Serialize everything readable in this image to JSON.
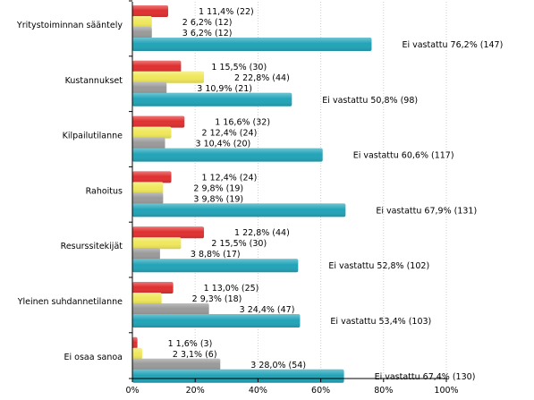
{
  "chart_data": {
    "type": "bar",
    "orientation": "horizontal",
    "xlim": [
      0,
      100
    ],
    "x_ticks": [
      "0%",
      "20%",
      "40%",
      "60%",
      "80%",
      "100%"
    ],
    "colors": {
      "1": "#e03030",
      "2": "#f0e85a",
      "3": "#9a9a9a",
      "Ei vastattu": "#22a4b8"
    },
    "groups": [
      {
        "category": "Yritystoiminnan sääntely",
        "bars": [
          {
            "key": "1",
            "value": 11.4,
            "label": "1 11,4% (22)"
          },
          {
            "key": "2",
            "value": 6.2,
            "label": "2 6,2% (12)"
          },
          {
            "key": "3",
            "value": 6.2,
            "label": "3 6,2% (12)"
          },
          {
            "key": "Ei vastattu",
            "value": 76.2,
            "label": "Ei vastattu 76,2% (147)"
          }
        ]
      },
      {
        "category": "Kustannukset",
        "bars": [
          {
            "key": "1",
            "value": 15.5,
            "label": "1 15,5% (30)"
          },
          {
            "key": "2",
            "value": 22.8,
            "label": "2 22,8% (44)"
          },
          {
            "key": "3",
            "value": 10.9,
            "label": "3 10,9% (21)"
          },
          {
            "key": "Ei vastattu",
            "value": 50.8,
            "label": "Ei vastattu 50,8% (98)"
          }
        ]
      },
      {
        "category": "Kilpailutilanne",
        "bars": [
          {
            "key": "1",
            "value": 16.6,
            "label": "1 16,6% (32)"
          },
          {
            "key": "2",
            "value": 12.4,
            "label": "2 12,4% (24)"
          },
          {
            "key": "3",
            "value": 10.4,
            "label": "3 10,4% (20)"
          },
          {
            "key": "Ei vastattu",
            "value": 60.6,
            "label": "Ei vastattu 60,6% (117)"
          }
        ]
      },
      {
        "category": "Rahoitus",
        "bars": [
          {
            "key": "1",
            "value": 12.4,
            "label": "1 12,4% (24)"
          },
          {
            "key": "2",
            "value": 9.8,
            "label": "2 9,8% (19)"
          },
          {
            "key": "3",
            "value": 9.8,
            "label": "3 9,8% (19)"
          },
          {
            "key": "Ei vastattu",
            "value": 67.9,
            "label": "Ei vastattu 67,9% (131)"
          }
        ]
      },
      {
        "category": "Resurssitekijät",
        "bars": [
          {
            "key": "1",
            "value": 22.8,
            "label": "1 22,8% (44)"
          },
          {
            "key": "2",
            "value": 15.5,
            "label": "2 15,5% (30)"
          },
          {
            "key": "3",
            "value": 8.8,
            "label": "3 8,8% (17)"
          },
          {
            "key": "Ei vastattu",
            "value": 52.8,
            "label": "Ei vastattu 52,8% (102)"
          }
        ]
      },
      {
        "category": "Yleinen suhdannetilanne",
        "bars": [
          {
            "key": "1",
            "value": 13.0,
            "label": "1 13,0% (25)"
          },
          {
            "key": "2",
            "value": 9.3,
            "label": "2 9,3% (18)"
          },
          {
            "key": "3",
            "value": 24.4,
            "label": "3 24,4% (47)"
          },
          {
            "key": "Ei vastattu",
            "value": 53.4,
            "label": "Ei vastattu 53,4% (103)"
          }
        ]
      },
      {
        "category": "Ei osaa sanoa",
        "bars": [
          {
            "key": "1",
            "value": 1.6,
            "label": "1 1,6% (3)"
          },
          {
            "key": "2",
            "value": 3.1,
            "label": "2 3,1% (6)"
          },
          {
            "key": "3",
            "value": 28.0,
            "label": "3 28,0% (54)"
          },
          {
            "key": "Ei vastattu",
            "value": 67.4,
            "label": "Ei vastattu 67,4% (130)"
          }
        ]
      }
    ]
  }
}
